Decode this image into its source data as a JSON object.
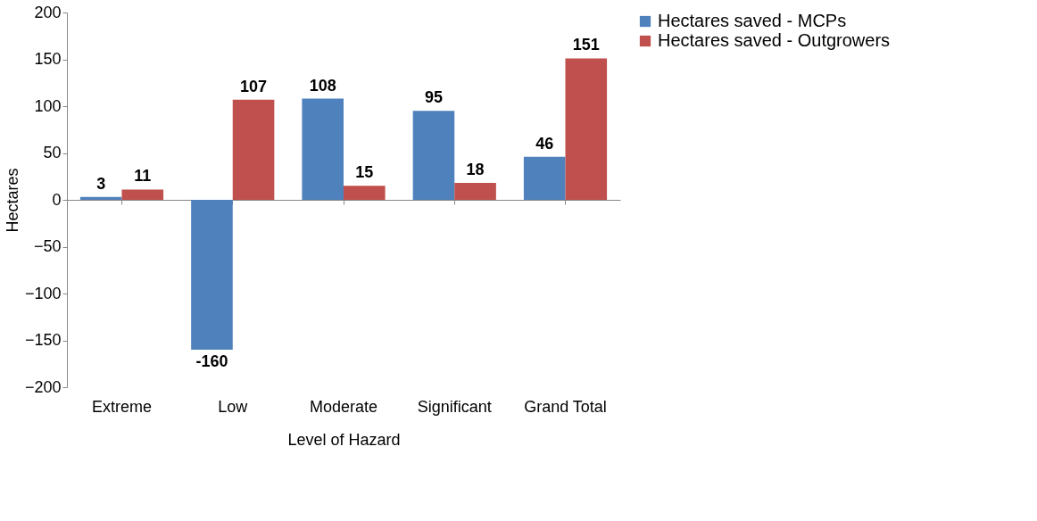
{
  "chart_data": {
    "type": "bar",
    "xlabel": "Level of Hazard",
    "ylabel": "Hectares",
    "categories": [
      "Extreme",
      "Low",
      "Moderate",
      "Significant",
      "Grand Total"
    ],
    "series": [
      {
        "name": "Hectares saved - MCPs",
        "color": "#4f81bd",
        "values": [
          3,
          -160,
          108,
          95,
          46
        ]
      },
      {
        "name": "Hectares saved - Outgrowers",
        "color": "#c0504d",
        "values": [
          11,
          107,
          15,
          18,
          151
        ]
      }
    ],
    "ylim": [
      -200,
      200
    ],
    "yticks": [
      -200,
      -150,
      -100,
      -50,
      0,
      50,
      100,
      150,
      200
    ],
    "legend": "right",
    "data_labels": true
  }
}
